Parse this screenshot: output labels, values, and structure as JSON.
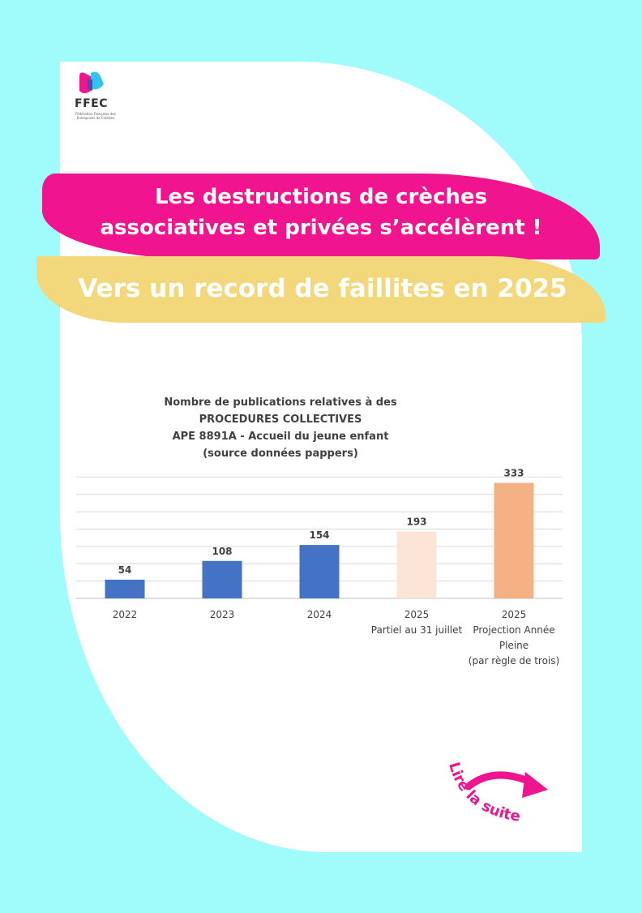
{
  "logo": {
    "name": "FFEC",
    "tagline": "Fédération Française des Entreprises de Crèches",
    "colors": [
      "#f0158f",
      "#33c4ee",
      "#6b3fa0"
    ]
  },
  "banner": {
    "line1": "Les destructions de crèches",
    "line2": "associatives et privées s’accélèrent !",
    "subtitle": "Vers un record de faillites en 2025",
    "pink_color": "#f0158f",
    "yellow_color": "#f3d77b"
  },
  "chart_data": {
    "type": "bar",
    "title_lines": [
      "Nombre de publications relatives à des",
      "PROCEDURES COLLECTIVES",
      "APE 8891A - Accueil du jeune enfant",
      "(source données pappers)"
    ],
    "categories": [
      [
        "2022"
      ],
      [
        "2023"
      ],
      [
        "2024"
      ],
      [
        "2025",
        "Partiel au 31 juillet"
      ],
      [
        "2025",
        "Projection Année",
        "Pleine",
        "(par règle de trois)"
      ]
    ],
    "values": [
      54,
      108,
      154,
      193,
      333
    ],
    "data_labels": [
      "54",
      "108",
      "154",
      "193",
      "333"
    ],
    "colors": [
      "#4472c4",
      "#4472c4",
      "#4472c4",
      "#fbe5d6",
      "#f4b183"
    ],
    "ylim": [
      0,
      350
    ],
    "grid": true,
    "legend": "none"
  },
  "cta": {
    "label": "Lire la suite",
    "color": "#f0158f"
  },
  "colors": {
    "background": "#9ffcfb",
    "card": "#ffffff"
  }
}
